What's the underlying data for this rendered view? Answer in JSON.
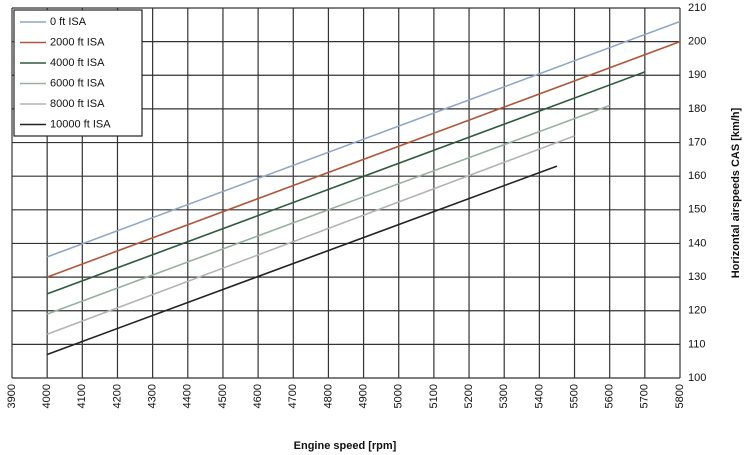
{
  "chart_data": {
    "type": "line",
    "xlabel": "Engine speed [rpm]",
    "ylabel": "Horizontal airspeeds CAS [km/h]",
    "xlim": [
      3900,
      5800
    ],
    "xticks": [
      3900,
      4000,
      4100,
      4200,
      4300,
      4400,
      4500,
      4600,
      4700,
      4800,
      4900,
      5000,
      5100,
      5200,
      5300,
      5400,
      5500,
      5600,
      5700,
      5800
    ],
    "ylim": [
      100,
      210
    ],
    "yticks": [
      100,
      110,
      120,
      130,
      140,
      150,
      160,
      170,
      180,
      190,
      200,
      210
    ],
    "grid": true,
    "legend": "top-left",
    "y_axis_side": "right",
    "series": [
      {
        "name": "0 ft ISA",
        "color": "#8fa6c4",
        "x": [
          4000,
          5800
        ],
        "values": [
          136,
          206
        ]
      },
      {
        "name": "2000 ft ISA",
        "color": "#b0573a",
        "x": [
          4000,
          5800
        ],
        "values": [
          130,
          200
        ]
      },
      {
        "name": "4000 ft ISA",
        "color": "#2e5a3c",
        "x": [
          4000,
          5700
        ],
        "values": [
          125,
          191
        ]
      },
      {
        "name": "6000 ft ISA",
        "color": "#98b0a0",
        "x": [
          4000,
          5600
        ],
        "values": [
          119,
          181
        ]
      },
      {
        "name": "8000 ft ISA",
        "color": "#b4b4b4",
        "x": [
          4000,
          5500
        ],
        "values": [
          113,
          172
        ]
      },
      {
        "name": "10000 ft ISA",
        "color": "#222222",
        "x": [
          4000,
          5450
        ],
        "values": [
          107,
          163
        ]
      }
    ]
  }
}
